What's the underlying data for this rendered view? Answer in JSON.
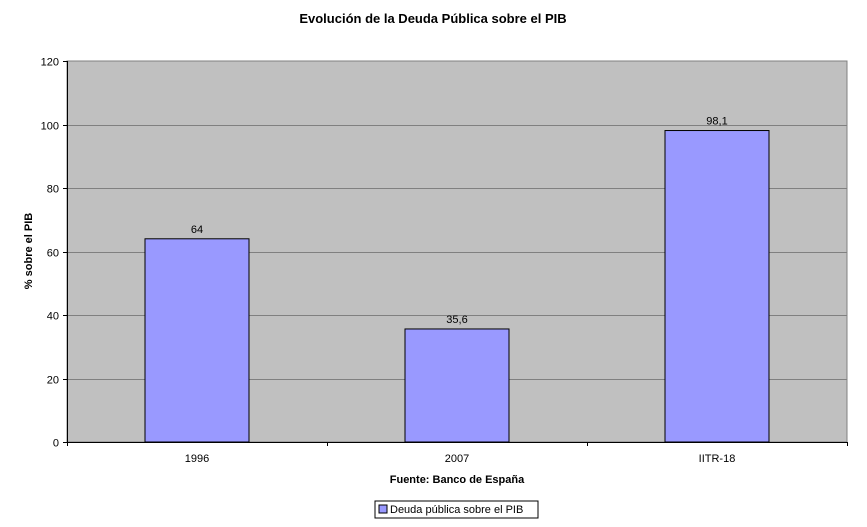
{
  "chart_data": {
    "type": "bar",
    "title": "Evolución de la Deuda Pública sobre el PIB",
    "xlabel": "Fuente: Banco de España",
    "ylabel": "% sobre el PIB",
    "categories": [
      "1996",
      "2007",
      "IITR-18"
    ],
    "series": [
      {
        "name": "Deuda pública sobre el PIB",
        "values": [
          64,
          35.6,
          98.1
        ],
        "value_labels": [
          "64",
          "35,6",
          "98,1"
        ],
        "color": "#9999ff"
      }
    ],
    "ylim": [
      0,
      120
    ],
    "yticks": [
      0,
      20,
      40,
      60,
      80,
      100,
      120
    ],
    "grid": true,
    "legend_position": "bottom",
    "plot_background": "#c0c0c0"
  }
}
